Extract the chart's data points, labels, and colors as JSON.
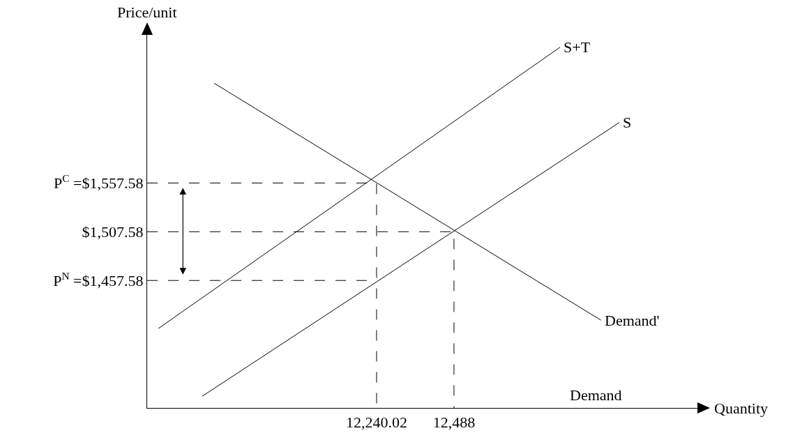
{
  "chart_data": {
    "type": "line",
    "xlabel": "Quantity",
    "ylabel": "Price/unit",
    "xlim": [
      11505,
      13268
    ],
    "ylim": [
      1326.8,
      1709.6
    ],
    "xticks": [
      {
        "value": 12240.02,
        "label": "12,240.02"
      },
      {
        "value": 12488,
        "label": "12,488"
      }
    ],
    "yticks": [
      {
        "value": 1457.58,
        "label": "P$^{N}$ =$1,457.58"
      },
      {
        "value": 1507.58,
        "label": "$1,507.58"
      },
      {
        "value": 1557.58,
        "label": "P$^{C}$ =$1,557.58"
      }
    ],
    "grid": false,
    "legend": false,
    "marker": "none",
    "line_style": "solid",
    "series": [
      {
        "name": "Demand'",
        "color": "#000000",
        "x": [
          11719.5,
          12959
        ],
        "values": [
          1660,
          1416.8
        ]
      },
      {
        "name": "S+T",
        "color": "#000000",
        "x": [
          11540.8,
          12827.6
        ],
        "values": [
          1408.3,
          1696.9
        ]
      },
      {
        "name": "S",
        "color": "#000000",
        "x": [
          11681.5,
          13017.5
        ],
        "values": [
          1338.8,
          1619.6
        ]
      },
      {
        "color": "#000000",
        "line_style": "dashed",
        "x": [
          11505,
          12240.02,
          12240.02
        ],
        "values": [
          1557.58,
          1557.58,
          1326.8
        ]
      },
      {
        "color": "#000000",
        "line_style": "dashed",
        "x": [
          11505,
          12488,
          12488
        ],
        "values": [
          1507.58,
          1507.58,
          1326.8
        ]
      },
      {
        "color": "#000000",
        "line_style": "dashed",
        "x": [
          11505,
          12240.02
        ],
        "values": [
          1457.58,
          1457.58
        ]
      }
    ],
    "annotations": [
      "Demand"
    ]
  }
}
